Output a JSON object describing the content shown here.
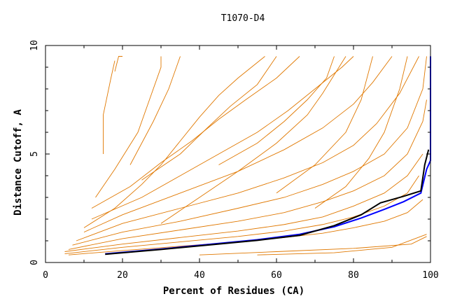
{
  "chart_data": {
    "type": "line",
    "title": "T1070-D4",
    "xlabel": "Percent of Residues (CA)",
    "ylabel": "Distance Cutoff, A",
    "xlim": [
      0,
      100
    ],
    "ylim": [
      0,
      10
    ],
    "xticks": [
      0,
      20,
      40,
      60,
      80,
      100
    ],
    "yticks": [
      0,
      5,
      10
    ],
    "grid": false,
    "legend": "none",
    "colors": {
      "models": "#e07800",
      "highlight_black": "#000000",
      "highlight_blue": "#0000ff",
      "axes": "#000000"
    },
    "series": [
      {
        "color": "#0000ff",
        "points": [
          [
            15.5,
            0.4
          ],
          [
            30,
            0.62
          ],
          [
            45,
            0.88
          ],
          [
            55,
            1.05
          ],
          [
            66,
            1.3
          ],
          [
            75,
            1.65
          ],
          [
            82,
            2.05
          ],
          [
            88,
            2.45
          ],
          [
            93,
            2.8
          ],
          [
            97.5,
            3.2
          ],
          [
            99,
            4.3
          ],
          [
            100,
            4.7
          ],
          [
            100,
            9.5
          ]
        ]
      },
      {
        "color": "#000000",
        "points": [
          [
            15.5,
            0.38
          ],
          [
            30,
            0.6
          ],
          [
            45,
            0.85
          ],
          [
            55,
            1.02
          ],
          [
            66,
            1.25
          ],
          [
            75,
            1.7
          ],
          [
            82,
            2.2
          ],
          [
            87,
            2.75
          ],
          [
            93,
            3.05
          ],
          [
            97.5,
            3.3
          ],
          [
            98.5,
            4.5
          ],
          [
            99.5,
            5.2
          ]
        ]
      },
      {
        "color": "#e07800",
        "points": [
          [
            18,
            8.8
          ],
          [
            19,
            9.5
          ],
          [
            20,
            9.5
          ]
        ]
      },
      {
        "color": "#e07800",
        "points": [
          [
            15,
            5.0
          ],
          [
            15,
            6.8
          ],
          [
            17,
            8.5
          ],
          [
            18,
            9.3
          ]
        ]
      },
      {
        "color": "#e07800",
        "points": [
          [
            13,
            3.0
          ],
          [
            18,
            4.3
          ],
          [
            24,
            6.0
          ],
          [
            27,
            7.5
          ],
          [
            30,
            9.0
          ],
          [
            30,
            9.5
          ]
        ]
      },
      {
        "color": "#e07800",
        "points": [
          [
            10,
            1.6
          ],
          [
            18,
            2.5
          ],
          [
            25,
            3.6
          ],
          [
            30,
            4.5
          ],
          [
            35,
            5.6
          ],
          [
            40,
            6.7
          ],
          [
            45,
            7.7
          ],
          [
            50,
            8.5
          ],
          [
            57,
            9.5
          ]
        ]
      },
      {
        "color": "#e07800",
        "points": [
          [
            12,
            2.5
          ],
          [
            22,
            3.5
          ],
          [
            30,
            4.6
          ],
          [
            38,
            5.6
          ],
          [
            45,
            6.6
          ],
          [
            52,
            7.5
          ],
          [
            60,
            8.5
          ],
          [
            66,
            9.5
          ]
        ]
      },
      {
        "color": "#e07800",
        "points": [
          [
            12,
            2.0
          ],
          [
            25,
            3.0
          ],
          [
            35,
            4.0
          ],
          [
            45,
            5.0
          ],
          [
            55,
            6.0
          ],
          [
            63,
            7.0
          ],
          [
            70,
            8.0
          ],
          [
            77,
            9.0
          ],
          [
            80,
            9.5
          ]
        ]
      },
      {
        "color": "#e07800",
        "points": [
          [
            10,
            1.4
          ],
          [
            20,
            2.2
          ],
          [
            35,
            3.2
          ],
          [
            50,
            4.2
          ],
          [
            62,
            5.2
          ],
          [
            72,
            6.2
          ],
          [
            80,
            7.3
          ],
          [
            85,
            8.3
          ],
          [
            90,
            9.5
          ]
        ]
      },
      {
        "color": "#e07800",
        "points": [
          [
            8,
            1.0
          ],
          [
            20,
            1.8
          ],
          [
            35,
            2.5
          ],
          [
            50,
            3.2
          ],
          [
            62,
            3.9
          ],
          [
            72,
            4.6
          ],
          [
            80,
            5.4
          ],
          [
            86,
            6.4
          ],
          [
            92,
            7.8
          ],
          [
            97,
            9.5
          ]
        ]
      },
      {
        "color": "#e07800",
        "points": [
          [
            7,
            0.8
          ],
          [
            20,
            1.4
          ],
          [
            35,
            1.9
          ],
          [
            50,
            2.5
          ],
          [
            62,
            3.0
          ],
          [
            72,
            3.6
          ],
          [
            80,
            4.2
          ],
          [
            88,
            5.0
          ],
          [
            94,
            6.2
          ],
          [
            98,
            8.0
          ],
          [
            99,
            9.5
          ]
        ]
      },
      {
        "color": "#e07800",
        "points": [
          [
            6,
            0.6
          ],
          [
            20,
            1.1
          ],
          [
            35,
            1.5
          ],
          [
            50,
            1.9
          ],
          [
            62,
            2.3
          ],
          [
            72,
            2.8
          ],
          [
            80,
            3.3
          ],
          [
            88,
            4.0
          ],
          [
            94,
            5.0
          ],
          [
            98,
            6.5
          ],
          [
            99,
            7.5
          ]
        ]
      },
      {
        "color": "#e07800",
        "points": [
          [
            5,
            0.5
          ],
          [
            20,
            0.85
          ],
          [
            35,
            1.15
          ],
          [
            50,
            1.45
          ],
          [
            62,
            1.75
          ],
          [
            72,
            2.1
          ],
          [
            80,
            2.6
          ],
          [
            88,
            3.2
          ],
          [
            94,
            4.0
          ],
          [
            98,
            5.0
          ]
        ]
      },
      {
        "color": "#e07800",
        "points": [
          [
            5,
            0.4
          ],
          [
            20,
            0.7
          ],
          [
            35,
            0.95
          ],
          [
            50,
            1.2
          ],
          [
            62,
            1.45
          ],
          [
            72,
            1.75
          ],
          [
            80,
            2.1
          ],
          [
            88,
            2.6
          ],
          [
            94,
            3.2
          ],
          [
            97,
            4.0
          ]
        ]
      },
      {
        "color": "#e07800",
        "points": [
          [
            6,
            0.35
          ],
          [
            20,
            0.55
          ],
          [
            35,
            0.75
          ],
          [
            50,
            0.95
          ],
          [
            62,
            1.15
          ],
          [
            72,
            1.35
          ],
          [
            80,
            1.6
          ],
          [
            88,
            1.9
          ],
          [
            94,
            2.3
          ],
          [
            98,
            2.9
          ]
        ]
      },
      {
        "color": "#e07800",
        "points": [
          [
            40,
            0.35
          ],
          [
            60,
            0.5
          ],
          [
            80,
            0.65
          ],
          [
            95,
            0.85
          ],
          [
            99,
            1.2
          ]
        ]
      },
      {
        "color": "#e07800",
        "points": [
          [
            55,
            0.35
          ],
          [
            75,
            0.45
          ],
          [
            90,
            0.7
          ],
          [
            99,
            1.3
          ]
        ]
      },
      {
        "color": "#e07800",
        "points": [
          [
            30,
            1.8
          ],
          [
            40,
            3.0
          ],
          [
            50,
            4.2
          ],
          [
            60,
            5.5
          ],
          [
            68,
            6.8
          ],
          [
            72,
            7.8
          ],
          [
            78,
            9.5
          ]
        ]
      },
      {
        "color": "#e07800",
        "points": [
          [
            25,
            3.8
          ],
          [
            35,
            5.0
          ],
          [
            42,
            6.2
          ],
          [
            48,
            7.2
          ],
          [
            55,
            8.2
          ],
          [
            60,
            9.5
          ]
        ]
      },
      {
        "color": "#e07800",
        "points": [
          [
            45,
            4.5
          ],
          [
            55,
            5.5
          ],
          [
            62,
            6.5
          ],
          [
            68,
            7.5
          ],
          [
            73,
            8.5
          ],
          [
            75,
            9.5
          ]
        ]
      },
      {
        "color": "#e07800",
        "points": [
          [
            22,
            4.5
          ],
          [
            28,
            6.5
          ],
          [
            32,
            8.0
          ],
          [
            35,
            9.5
          ]
        ]
      },
      {
        "color": "#e07800",
        "points": [
          [
            60,
            3.2
          ],
          [
            70,
            4.5
          ],
          [
            78,
            6.0
          ],
          [
            82,
            7.5
          ],
          [
            85,
            9.5
          ]
        ]
      },
      {
        "color": "#e07800",
        "points": [
          [
            70,
            2.5
          ],
          [
            78,
            3.5
          ],
          [
            84,
            4.8
          ],
          [
            88,
            6.0
          ],
          [
            92,
            8.0
          ],
          [
            94,
            9.5
          ]
        ]
      }
    ]
  }
}
